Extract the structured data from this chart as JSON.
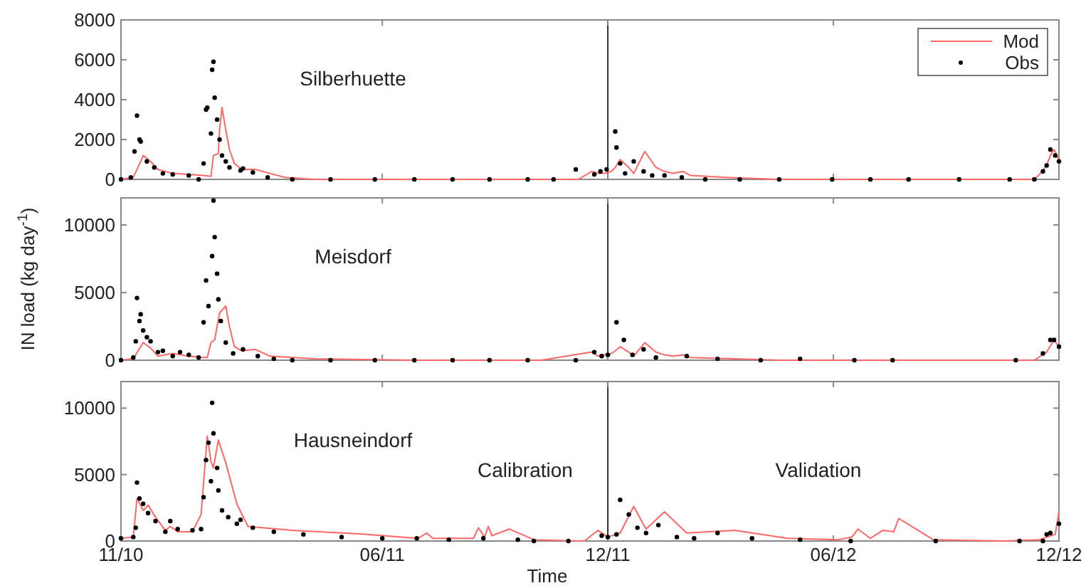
{
  "chart_data": [
    {
      "type": "line",
      "title": "Silberhuette",
      "xlim": [
        "2010-11-01",
        "2012-12-01"
      ],
      "xticks": [
        {
          "value": "2010-11-01",
          "label": null
        },
        {
          "value": "2011-06-01",
          "label": null
        },
        {
          "value": "2011-12-01",
          "label": null
        },
        {
          "value": "2012-06-01",
          "label": null
        },
        {
          "value": "2012-12-01",
          "label": null
        }
      ],
      "ylim": [
        0,
        8000
      ],
      "yticks": [
        0,
        2000,
        4000,
        6000,
        8000
      ],
      "tick_labels": "y",
      "legend": "top right",
      "ref_lines": [
        {
          "axis": "x",
          "value": "2011-12-01",
          "color": "#000000"
        }
      ],
      "series": [
        {
          "name": "Mod",
          "color": "#ff6666",
          "x": [
            "2010-11-01",
            "2010-11-11",
            "2010-11-17",
            "2010-11-19",
            "2010-11-25",
            "2010-12-01",
            "2010-12-13",
            "2010-12-26",
            "2011-01-07",
            "2011-01-13",
            "2011-01-15",
            "2011-01-19",
            "2011-01-20",
            "2011-01-22",
            "2011-01-25",
            "2011-01-28",
            "2011-02-01",
            "2011-02-07",
            "2011-02-18",
            "2011-03-02",
            "2011-03-14",
            "2011-04-07",
            "2011-05-02",
            "2011-06-27",
            "2011-08-17",
            "2011-10-08",
            "2011-11-07",
            "2011-11-18",
            "2011-11-23",
            "2011-11-28",
            "2011-12-04",
            "2011-12-07",
            "2011-12-11",
            "2011-12-18",
            "2011-12-22",
            "2011-12-31",
            "2012-01-09",
            "2012-01-16",
            "2012-01-23",
            "2012-01-31",
            "2012-02-06",
            "2012-03-06",
            "2012-04-18",
            "2012-06-21",
            "2012-08-11",
            "2012-10-01",
            "2012-11-11",
            "2012-11-16",
            "2012-11-21",
            "2012-11-24",
            "2012-11-27",
            "2012-12-01"
          ],
          "values": [
            0,
            100,
            900,
            1200,
            900,
            500,
            300,
            250,
            200,
            150,
            1200,
            1300,
            2500,
            3600,
            2500,
            1500,
            800,
            500,
            500,
            300,
            100,
            0,
            0,
            0,
            0,
            0,
            0,
            400,
            300,
            300,
            400,
            600,
            1000,
            600,
            300,
            1400,
            600,
            400,
            300,
            400,
            200,
            100,
            0,
            0,
            0,
            0,
            0,
            300,
            700,
            1200,
            1500,
            1000
          ]
        },
        {
          "name": "Obs",
          "type": "scatter",
          "color": "#000000",
          "x": [
            "2010-11-01",
            "2010-11-09",
            "2010-11-12",
            "2010-11-14",
            "2010-11-16",
            "2010-11-17",
            "2010-11-22",
            "2010-11-28",
            "2010-12-05",
            "2010-12-13",
            "2010-12-26",
            "2011-01-03",
            "2011-01-07",
            "2011-01-09",
            "2011-01-10",
            "2011-01-13",
            "2011-01-14",
            "2011-01-15",
            "2011-01-16",
            "2011-01-18",
            "2011-01-20",
            "2011-01-22",
            "2011-01-25",
            "2011-01-28",
            "2011-02-06",
            "2011-02-08",
            "2011-02-16",
            "2011-02-28",
            "2011-03-20",
            "2011-04-20",
            "2011-05-26",
            "2011-06-27",
            "2011-07-28",
            "2011-08-27",
            "2011-09-27",
            "2011-10-18",
            "2011-11-05",
            "2011-11-20",
            "2011-11-25",
            "2011-11-30",
            "2011-12-07",
            "2011-12-08",
            "2011-12-11",
            "2011-12-15",
            "2011-12-22",
            "2011-12-30",
            "2012-01-06",
            "2012-01-16",
            "2012-01-30",
            "2012-02-18",
            "2012-03-17",
            "2012-04-18",
            "2012-05-31",
            "2012-07-01",
            "2012-08-01",
            "2012-09-11",
            "2012-10-22",
            "2012-11-11",
            "2012-11-18",
            "2012-11-21",
            "2012-11-24",
            "2012-11-28",
            "2012-12-01"
          ],
          "values": [
            0,
            100,
            1400,
            3200,
            2000,
            1900,
            900,
            600,
            300,
            250,
            200,
            0,
            800,
            3500,
            3600,
            2300,
            5500,
            5900,
            4100,
            3000,
            2000,
            1200,
            900,
            600,
            450,
            550,
            350,
            100,
            0,
            0,
            0,
            0,
            0,
            0,
            0,
            0,
            500,
            250,
            400,
            500,
            2400,
            1600,
            800,
            300,
            900,
            400,
            200,
            200,
            100,
            0,
            0,
            0,
            0,
            0,
            0,
            0,
            0,
            0,
            400,
            700,
            1500,
            1200,
            900
          ]
        }
      ]
    },
    {
      "type": "line",
      "title": "Meisdorf",
      "ylabel": "IN load (kg day$^{-1}$)",
      "xlim": [
        "2010-11-01",
        "2012-12-01"
      ],
      "xticks": [
        {
          "value": "2010-11-01",
          "label": null
        },
        {
          "value": "2011-06-01",
          "label": null
        },
        {
          "value": "2011-12-01",
          "label": null
        },
        {
          "value": "2012-06-01",
          "label": null
        },
        {
          "value": "2012-12-01",
          "label": null
        }
      ],
      "ylim": [
        0,
        12000
      ],
      "yticks": [
        0,
        5000,
        10000
      ],
      "tick_labels": "y",
      "ref_lines": [
        {
          "axis": "x",
          "value": "2011-12-01",
          "color": "#000000"
        }
      ],
      "series": [
        {
          "color": "#ff6666",
          "x": [
            "2010-11-01",
            "2010-11-11",
            "2010-11-17",
            "2010-11-19",
            "2010-11-25",
            "2010-12-01",
            "2010-12-13",
            "2010-12-26",
            "2011-01-07",
            "2011-01-10",
            "2011-01-13",
            "2011-01-16",
            "2011-01-20",
            "2011-01-25",
            "2011-01-28",
            "2011-02-01",
            "2011-02-07",
            "2011-02-18",
            "2011-03-02",
            "2011-04-07",
            "2011-06-27",
            "2011-08-17",
            "2011-10-08",
            "2011-11-18",
            "2011-11-23",
            "2011-11-28",
            "2011-12-04",
            "2011-12-07",
            "2011-12-11",
            "2011-12-18",
            "2011-12-22",
            "2011-12-31",
            "2012-01-09",
            "2012-01-16",
            "2012-01-23",
            "2012-01-31",
            "2012-02-06",
            "2012-04-18",
            "2012-06-21",
            "2012-08-11",
            "2012-10-01",
            "2012-11-11",
            "2012-11-21",
            "2012-11-27",
            "2012-12-01"
          ],
          "values": [
            0,
            100,
            1000,
            1300,
            900,
            300,
            500,
            300,
            200,
            200,
            1300,
            1500,
            3500,
            4000,
            2500,
            1000,
            700,
            800,
            300,
            100,
            0,
            0,
            0,
            600,
            300,
            400,
            500,
            700,
            1000,
            600,
            300,
            1300,
            600,
            400,
            300,
            400,
            200,
            0,
            0,
            0,
            0,
            0,
            600,
            1500,
            1000
          ]
        },
        {
          "type": "scatter",
          "color": "#000000",
          "x": [
            "2010-11-01",
            "2010-11-11",
            "2010-11-13",
            "2010-11-14",
            "2010-11-16",
            "2010-11-17",
            "2010-11-19",
            "2010-11-22",
            "2010-11-25",
            "2010-12-01",
            "2010-12-05",
            "2010-12-13",
            "2010-12-19",
            "2010-12-26",
            "2011-01-03",
            "2011-01-07",
            "2011-01-09",
            "2011-01-11",
            "2011-01-14",
            "2011-01-15",
            "2011-01-16",
            "2011-01-18",
            "2011-01-19",
            "2011-01-21",
            "2011-01-25",
            "2011-01-31",
            "2011-02-08",
            "2011-02-20",
            "2011-03-05",
            "2011-03-20",
            "2011-04-20",
            "2011-05-26",
            "2011-06-27",
            "2011-07-28",
            "2011-08-27",
            "2011-09-27",
            "2011-11-05",
            "2011-11-20",
            "2011-11-26",
            "2011-12-01",
            "2011-12-08",
            "2011-12-14",
            "2011-12-21",
            "2011-12-30",
            "2012-01-09",
            "2012-02-03",
            "2012-02-28",
            "2012-04-03",
            "2012-05-05",
            "2012-06-18",
            "2012-07-19",
            "2012-10-27",
            "2012-11-18",
            "2012-11-24",
            "2012-11-27",
            "2012-12-01"
          ],
          "values": [
            0,
            200,
            1400,
            4600,
            2900,
            3400,
            2200,
            1700,
            1400,
            600,
            700,
            300,
            600,
            400,
            200,
            2800,
            5900,
            4000,
            7700,
            11800,
            9100,
            6400,
            4500,
            2900,
            1300,
            500,
            800,
            300,
            100,
            0,
            0,
            0,
            0,
            0,
            0,
            0,
            0,
            600,
            300,
            400,
            2800,
            1500,
            400,
            800,
            200,
            300,
            100,
            0,
            100,
            0,
            0,
            0,
            500,
            1500,
            1500,
            1000
          ]
        }
      ]
    },
    {
      "type": "line",
      "title": "Hausneindorf",
      "xlabel": "Time",
      "xlim": [
        "2010-11-01",
        "2012-12-01"
      ],
      "xticks": [
        {
          "value": "2010-11-01",
          "label": "11/10"
        },
        {
          "value": "2011-06-01",
          "label": "06/11"
        },
        {
          "value": "2011-12-01",
          "label": "12/11"
        },
        {
          "value": "2012-06-01",
          "label": "06/12"
        },
        {
          "value": "2012-12-01",
          "label": "12/12"
        }
      ],
      "ylim": [
        0,
        12000
      ],
      "yticks": [
        0,
        5000,
        10000
      ],
      "annotations": [
        "Calibration",
        "Validation"
      ],
      "ref_lines": [
        {
          "axis": "x",
          "value": "2011-12-01",
          "color": "#000000"
        }
      ],
      "series": [
        {
          "color": "#ff6666",
          "x": [
            "2010-11-01",
            "2010-11-11",
            "2010-11-14",
            "2010-11-19",
            "2010-11-23",
            "2010-11-29",
            "2010-12-07",
            "2010-12-11",
            "2010-12-17",
            "2010-12-29",
            "2011-01-05",
            "2011-01-10",
            "2011-01-13",
            "2011-01-15",
            "2011-01-19",
            "2011-01-25",
            "2011-02-03",
            "2011-02-12",
            "2011-03-20",
            "2011-05-20",
            "2011-06-30",
            "2011-07-07",
            "2011-07-12",
            "2011-08-14",
            "2011-08-18",
            "2011-08-23",
            "2011-08-26",
            "2011-08-29",
            "2011-09-12",
            "2011-10-02",
            "2011-11-05",
            "2011-11-12",
            "2011-11-23",
            "2011-12-01",
            "2011-12-11",
            "2011-12-22",
            "2012-01-01",
            "2012-01-16",
            "2012-02-03",
            "2012-03-13",
            "2012-04-25",
            "2012-06-05",
            "2012-06-16",
            "2012-06-21",
            "2012-07-01",
            "2012-07-11",
            "2012-07-20",
            "2012-07-24",
            "2012-08-21",
            "2012-10-17",
            "2012-11-15",
            "2012-11-28",
            "2012-12-01"
          ],
          "values": [
            200,
            300,
            3200,
            2300,
            2700,
            1800,
            800,
            1100,
            700,
            700,
            2000,
            7900,
            6000,
            5500,
            7600,
            5900,
            2800,
            1100,
            800,
            500,
            200,
            600,
            200,
            200,
            1000,
            300,
            1100,
            400,
            900,
            100,
            0,
            0,
            800,
            300,
            600,
            2600,
            900,
            2200,
            600,
            800,
            200,
            100,
            300,
            900,
            200,
            800,
            700,
            1700,
            100,
            0,
            100,
            500,
            2200
          ]
        },
        {
          "type": "scatter",
          "color": "#000000",
          "x": [
            "2010-11-01",
            "2010-11-11",
            "2010-11-13",
            "2010-11-14",
            "2010-11-16",
            "2010-11-19",
            "2010-11-23",
            "2010-11-29",
            "2010-12-07",
            "2010-12-11",
            "2010-12-17",
            "2010-12-29",
            "2011-01-05",
            "2011-01-07",
            "2011-01-09",
            "2011-01-11",
            "2011-01-13",
            "2011-01-14",
            "2011-01-15",
            "2011-01-18",
            "2011-01-19",
            "2011-01-22",
            "2011-01-27",
            "2011-02-03",
            "2011-02-06",
            "2011-02-16",
            "2011-03-05",
            "2011-03-29",
            "2011-04-29",
            "2011-06-01",
            "2011-06-29",
            "2011-07-25",
            "2011-08-22",
            "2011-09-19",
            "2011-10-02",
            "2011-10-30",
            "2011-11-26",
            "2011-12-01",
            "2011-12-08",
            "2011-12-11",
            "2011-12-18",
            "2011-12-25",
            "2012-01-01",
            "2012-01-11",
            "2012-01-26",
            "2012-02-09",
            "2012-02-28",
            "2012-03-27",
            "2012-05-05",
            "2012-06-15",
            "2012-08-23",
            "2012-10-30",
            "2012-11-18",
            "2012-11-21",
            "2012-11-24",
            "2012-12-01"
          ],
          "values": [
            200,
            300,
            1000,
            4400,
            3200,
            2800,
            2100,
            1500,
            700,
            1500,
            900,
            800,
            900,
            3300,
            6100,
            7400,
            4500,
            10400,
            8100,
            5500,
            3800,
            2300,
            1800,
            1300,
            1600,
            1000,
            700,
            500,
            300,
            200,
            200,
            100,
            200,
            100,
            0,
            0,
            400,
            300,
            500,
            3100,
            2000,
            1000,
            600,
            1200,
            300,
            200,
            600,
            200,
            100,
            0,
            0,
            0,
            0,
            500,
            600,
            1300
          ]
        }
      ]
    }
  ]
}
